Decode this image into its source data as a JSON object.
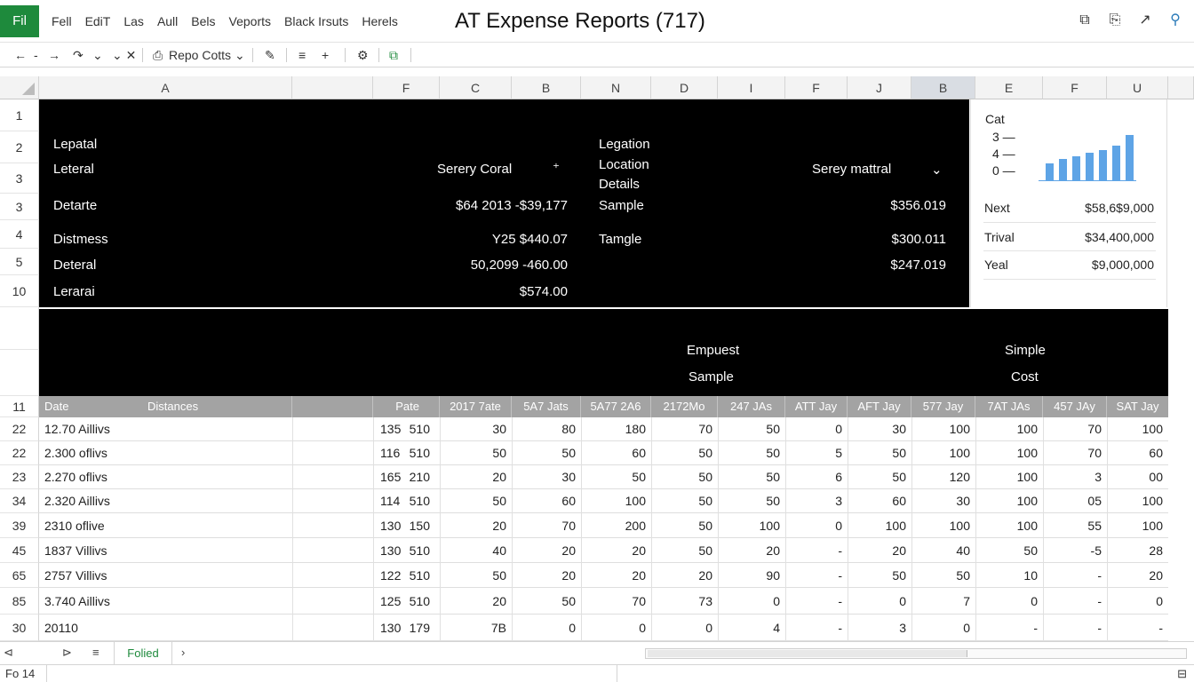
{
  "app": {
    "badge": "Fil",
    "title": "AT Expense Reports (717)",
    "menu": [
      "Fell",
      "EdiT",
      "Las",
      "Aull",
      "Bels",
      "Veports",
      "Black Irsuts",
      "Herels"
    ]
  },
  "toolbar": {
    "back": "←",
    "back_arrow": "-",
    "forward": "→",
    "undo": "↷",
    "undo_menu": "⌄",
    "redo": "⌄ ✕",
    "report_name": "Repo Cotts",
    "report_dropdown": "⌄",
    "brush": "✎",
    "align": "≡",
    "add": "+",
    "settings": "⚙",
    "export": "⧉"
  },
  "window_icons": [
    "⧉",
    "⎘",
    "↗",
    "⚲"
  ],
  "column_headers": [
    "A",
    "",
    "F",
    "C",
    "B",
    "N",
    "D",
    "I",
    "F",
    "J",
    "B",
    "E",
    "F",
    "U"
  ],
  "row_numbers": [
    "1",
    "2",
    "3",
    "3",
    "4",
    "5",
    "10",
    "",
    "",
    "11",
    "22",
    "22",
    "23",
    "34",
    "39",
    "45",
    "65",
    "85",
    "30"
  ],
  "top_block": {
    "left_labels": [
      "Lepatal",
      "Leteral",
      "Detarte",
      "Distmess",
      "Deteral",
      "Lerarai"
    ],
    "mid_header": "Serery Coral",
    "mid_header_icon": "⁺",
    "mid_values": [
      "$64 2013  -$39,177",
      "Y25  $440.07",
      "50,2099  -460.00",
      "$574.00"
    ],
    "loc_labels": [
      "Legation",
      "Location",
      "Details",
      "Sample",
      "Tamgle"
    ],
    "right_header": "Serey mattral",
    "right_header_icon": "⌄",
    "right_values": [
      "$356.019",
      "$300.011",
      "$247.019"
    ]
  },
  "summary_panel": {
    "title": "Cat",
    "legend": [
      "3 —",
      "4 —",
      "0 —"
    ],
    "bars": [
      0.28,
      0.36,
      0.4,
      0.45,
      0.5,
      0.58,
      0.75
    ],
    "rows": [
      {
        "label": "Next",
        "value": "$58,6$9,000"
      },
      {
        "label": "Trival",
        "value": "$34,400,000"
      },
      {
        "label": "Yeal",
        "value": "$9,000,000"
      }
    ]
  },
  "mid_band": {
    "col1": [
      "Empuest",
      "Sample"
    ],
    "col2": [
      "Simple",
      "Cost"
    ]
  },
  "table": {
    "headers": [
      "Date",
      "Distances",
      "Pate",
      "2017 7ate",
      "5A7 Jats",
      "5A77 2A6",
      "2172Mo",
      "247 JAs",
      "ATT Jay",
      "AFT Jay",
      "577 Jay",
      "7AT JAs",
      "457 JAy",
      "SAT Jay"
    ],
    "rows": [
      [
        "12.70 Aillivs",
        "135",
        "510",
        "30",
        "80",
        "180",
        "70",
        "50",
        "0",
        "30",
        "100",
        "100",
        "70",
        "100"
      ],
      [
        "2.300 oflivs",
        "116",
        "510",
        "50",
        "50",
        "60",
        "50",
        "50",
        "5",
        "50",
        "100",
        "100",
        "70",
        "60"
      ],
      [
        "2.270 oflivs",
        "165",
        "210",
        "20",
        "30",
        "50",
        "50",
        "50",
        "6",
        "50",
        "120",
        "100",
        "3",
        "00"
      ],
      [
        "2.320 Aillivs",
        "114",
        "510",
        "50",
        "60",
        "100",
        "50",
        "50",
        "3",
        "60",
        "30",
        "100",
        "05",
        "100"
      ],
      [
        "2310 oflive",
        "130",
        "150",
        "20",
        "70",
        "200",
        "50",
        "100",
        "0",
        "100",
        "100",
        "100",
        "55",
        "100"
      ],
      [
        "1837 Villivs",
        "130",
        "510",
        "40",
        "20",
        "20",
        "50",
        "20",
        "-",
        "20",
        "40",
        "50",
        "-5",
        "28"
      ],
      [
        "2757 Villivs",
        "122",
        "510",
        "50",
        "20",
        "20",
        "20",
        "90",
        "-",
        "50",
        "50",
        "10",
        "-",
        "20"
      ],
      [
        "3.740 Aillivs",
        "125",
        "510",
        "20",
        "50",
        "70",
        "73",
        "0",
        "-",
        "0",
        "7",
        "0",
        "-",
        "0"
      ],
      [
        "20110",
        "130",
        "179",
        "7B",
        "0",
        "0",
        "0",
        "4",
        "-",
        "3",
        "0",
        "-",
        "-",
        "-"
      ]
    ]
  },
  "sheets": {
    "nav_first": "⊲",
    "nav_prev": "⊳",
    "nav_list": "≡",
    "active": "Folied",
    "nav_next": "›"
  },
  "status": {
    "left": "Fo  14",
    "right": "⊟"
  }
}
